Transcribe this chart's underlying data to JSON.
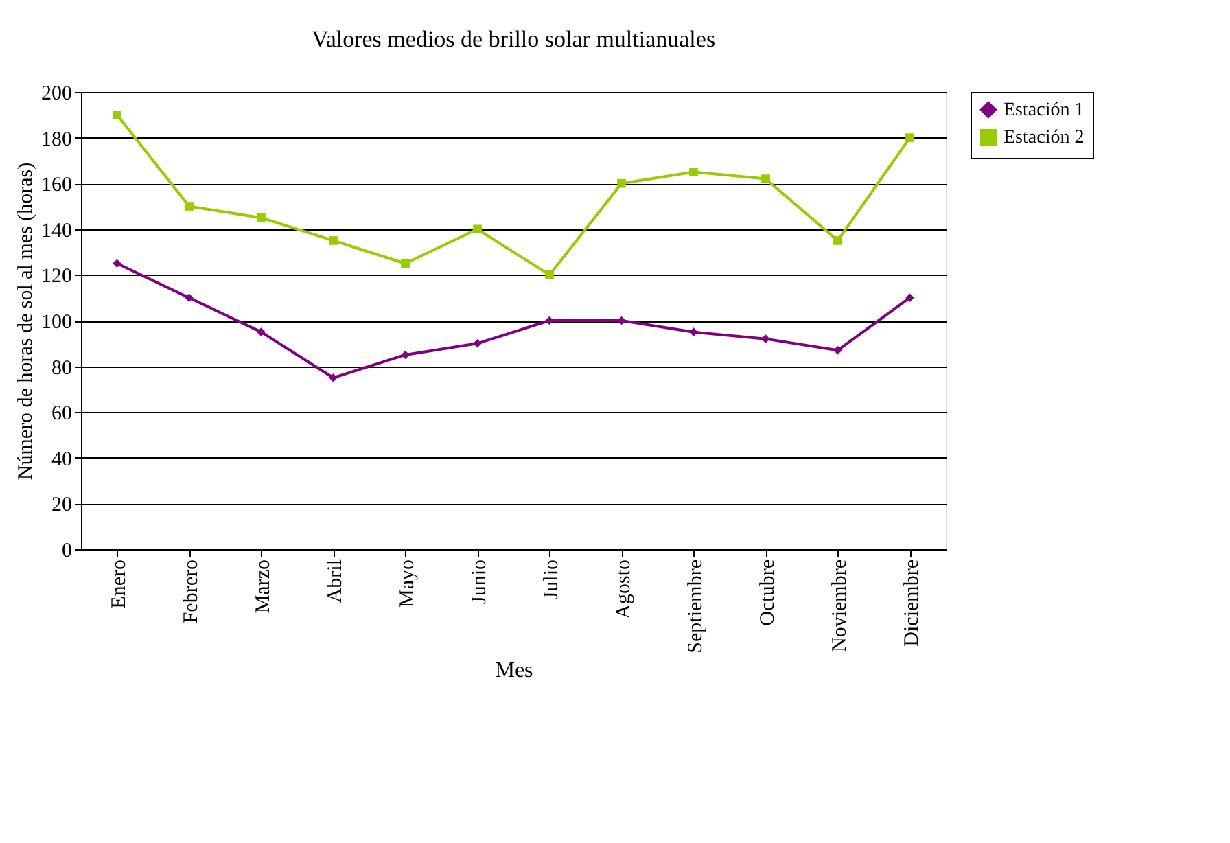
{
  "chart_data": {
    "type": "line",
    "title": "Valores medios de brillo solar multianuales",
    "xlabel": "Mes",
    "ylabel": "Número de horas de sol al mes (horas)",
    "categories": [
      "Enero",
      "Febrero",
      "Marzo",
      "Abril",
      "Mayo",
      "Junio",
      "Julio",
      "Agosto",
      "Septiembre",
      "Octubre",
      "Noviembre",
      "Diciembre"
    ],
    "series": [
      {
        "name": "Estación 1",
        "color": "#800080",
        "marker": "diamond",
        "values": [
          125,
          110,
          95,
          75,
          85,
          90,
          100,
          100,
          95,
          92,
          87,
          110
        ]
      },
      {
        "name": "Estación 2",
        "color": "#99cc00",
        "marker": "square",
        "values": [
          190,
          150,
          145,
          135,
          125,
          140,
          120,
          160,
          165,
          162,
          135,
          180
        ]
      }
    ],
    "ylim": [
      0,
      200
    ],
    "yticks": [
      0,
      20,
      40,
      60,
      80,
      100,
      120,
      140,
      160,
      180,
      200
    ],
    "grid": "y",
    "legend": "right",
    "line_style": "solid"
  }
}
